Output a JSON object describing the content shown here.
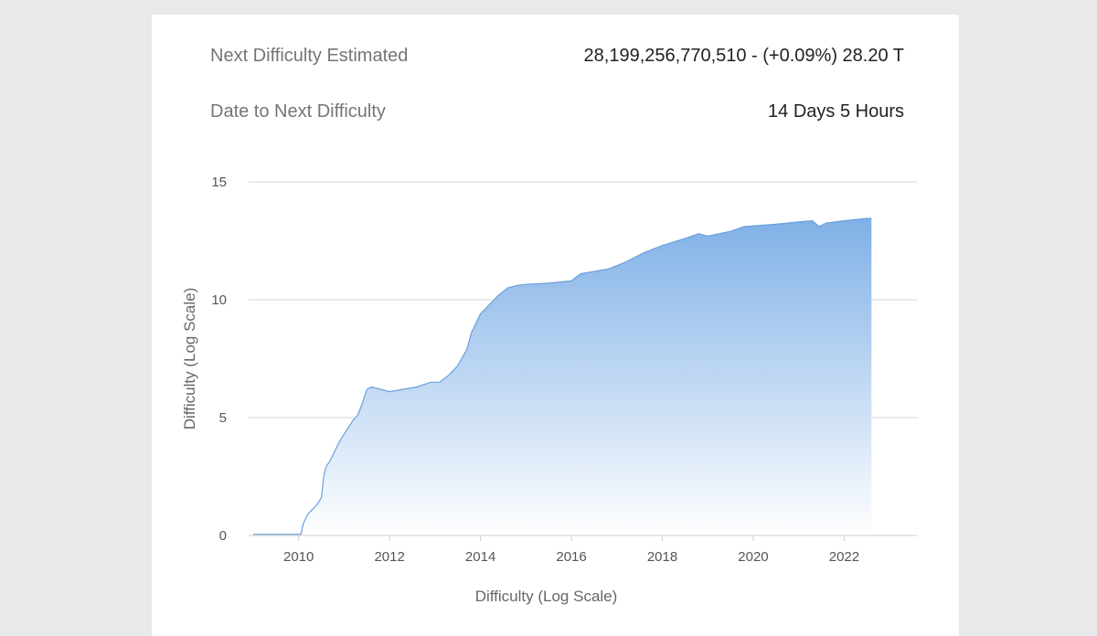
{
  "stats": {
    "next_difficulty_label": "Next Difficulty Estimated",
    "next_difficulty_value": "28,199,256,770,510 - (+0.09%) 28.20 T",
    "date_label": "Date to Next Difficulty",
    "date_value": "14 Days 5 Hours"
  },
  "colors": {
    "fill_top": "#7fb0e6",
    "fill_bottom": "#ffffff",
    "line": "#6aa0dd",
    "grid": "#d4d4d4"
  },
  "chart_data": {
    "type": "area",
    "title": "",
    "xlabel": "Difficulty (Log Scale)",
    "ylabel": "Difficulty (Log Scale)",
    "xlim": [
      2008.9,
      2023.6
    ],
    "ylim": [
      0,
      15
    ],
    "xticks": [
      2010,
      2012,
      2014,
      2016,
      2018,
      2020,
      2022
    ],
    "yticks": [
      0,
      5,
      10,
      15
    ],
    "grid": true,
    "legend": "none",
    "series": [
      {
        "name": "Difficulty (Log Scale)",
        "x": [
          2009.0,
          2010.05,
          2010.1,
          2010.2,
          2010.3,
          2010.4,
          2010.5,
          2010.55,
          2010.6,
          2010.7,
          2010.8,
          2010.9,
          2011.0,
          2011.1,
          2011.2,
          2011.3,
          2011.4,
          2011.5,
          2011.6,
          2011.8,
          2012.0,
          2012.3,
          2012.6,
          2012.9,
          2013.1,
          2013.3,
          2013.5,
          2013.7,
          2013.8,
          2014.0,
          2014.2,
          2014.4,
          2014.6,
          2014.8,
          2015.0,
          2015.5,
          2016.0,
          2016.2,
          2016.8,
          2017.2,
          2017.6,
          2018.0,
          2018.5,
          2018.8,
          2019.0,
          2019.5,
          2019.8,
          2020.5,
          2021.0,
          2021.3,
          2021.45,
          2021.6,
          2022.0,
          2022.5,
          2022.6
        ],
        "y": [
          0.05,
          0.05,
          0.5,
          0.9,
          1.1,
          1.3,
          1.6,
          2.5,
          2.9,
          3.2,
          3.6,
          4.0,
          4.3,
          4.6,
          4.9,
          5.1,
          5.6,
          6.2,
          6.3,
          6.2,
          6.1,
          6.2,
          6.3,
          6.5,
          6.5,
          6.8,
          7.2,
          7.9,
          8.6,
          9.4,
          9.8,
          10.2,
          10.5,
          10.6,
          10.65,
          10.7,
          10.8,
          11.1,
          11.3,
          11.6,
          12.0,
          12.3,
          12.6,
          12.8,
          12.7,
          12.9,
          13.1,
          13.2,
          13.3,
          13.35,
          13.1,
          13.25,
          13.35,
          13.45,
          13.45
        ]
      }
    ]
  }
}
